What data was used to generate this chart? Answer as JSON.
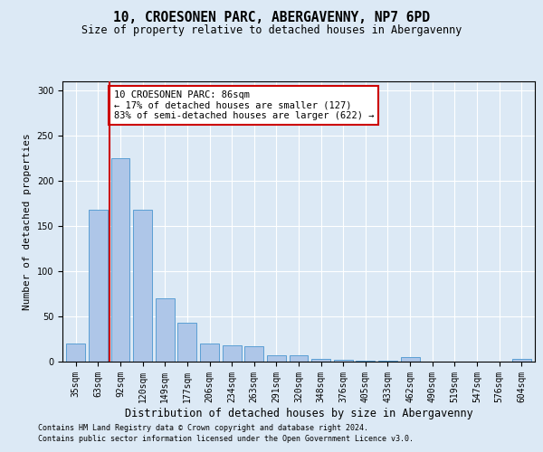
{
  "title": "10, CROESONEN PARC, ABERGAVENNY, NP7 6PD",
  "subtitle": "Size of property relative to detached houses in Abergavenny",
  "xlabel": "Distribution of detached houses by size in Abergavenny",
  "ylabel": "Number of detached properties",
  "footnote1": "Contains HM Land Registry data © Crown copyright and database right 2024.",
  "footnote2": "Contains public sector information licensed under the Open Government Licence v3.0.",
  "categories": [
    "35sqm",
    "63sqm",
    "92sqm",
    "120sqm",
    "149sqm",
    "177sqm",
    "206sqm",
    "234sqm",
    "263sqm",
    "291sqm",
    "320sqm",
    "348sqm",
    "376sqm",
    "405sqm",
    "433sqm",
    "462sqm",
    "490sqm",
    "519sqm",
    "547sqm",
    "576sqm",
    "604sqm"
  ],
  "values": [
    20,
    168,
    225,
    168,
    70,
    43,
    20,
    18,
    17,
    7,
    7,
    3,
    2,
    1,
    1,
    5,
    0,
    0,
    0,
    0,
    3
  ],
  "bar_color": "#aec6e8",
  "bar_edge_color": "#5a9fd4",
  "vline_pos": 1.5,
  "vline_color": "#cc0000",
  "annotation_text": "10 CROESONEN PARC: 86sqm\n← 17% of detached houses are smaller (127)\n83% of semi-detached houses are larger (622) →",
  "annotation_box_color": "#ffffff",
  "annotation_box_edge": "#cc0000",
  "bg_color": "#dce9f5",
  "plot_bg_color": "#dce9f5",
  "ylim": [
    0,
    310
  ],
  "yticks": [
    0,
    50,
    100,
    150,
    200,
    250,
    300
  ],
  "title_fontsize": 10.5,
  "subtitle_fontsize": 8.5,
  "ylabel_fontsize": 8,
  "xlabel_fontsize": 8.5,
  "tick_fontsize": 7,
  "annot_fontsize": 7.5,
  "footnote_fontsize": 6
}
